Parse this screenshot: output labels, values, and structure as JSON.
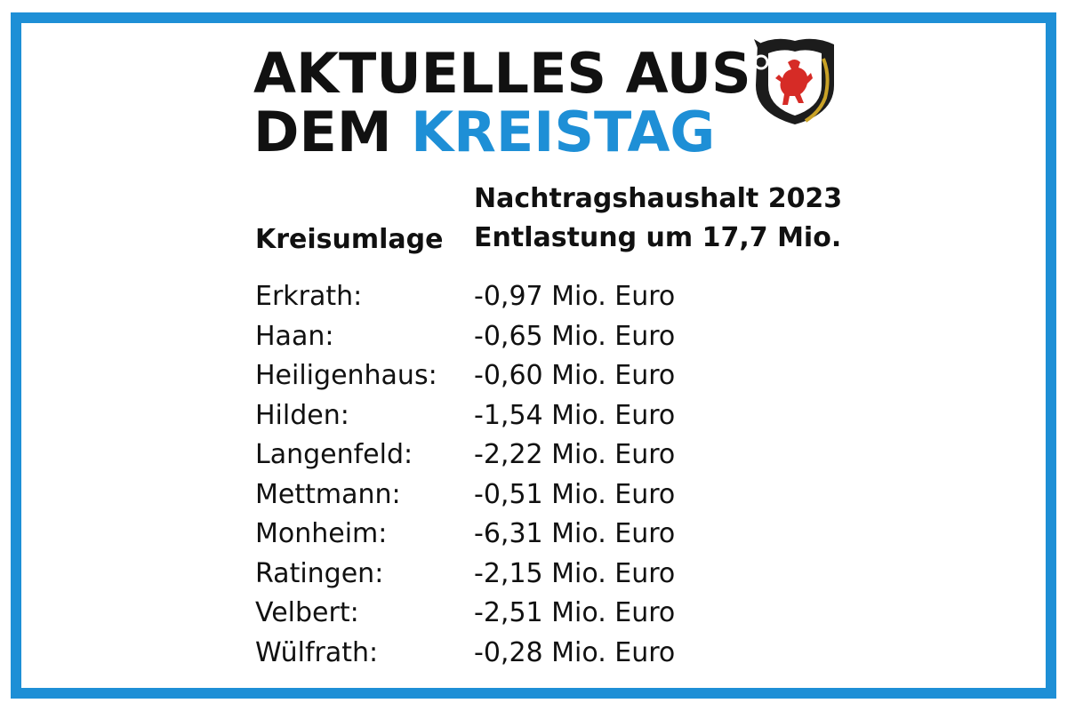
{
  "headline": {
    "line1": "AKTUELLES AUS",
    "line2_black": "DEM",
    "line2_blue": "KREISTAG"
  },
  "colors": {
    "accent_blue": "#1e8fd6",
    "text": "#111111"
  },
  "crest": {
    "icon": "coat-of-arms-red-lion-icon"
  },
  "table": {
    "left_header": "Kreisumlage",
    "right_header_line1": "Nachtragshaushalt 2023",
    "right_header_line2": "Entlastung um 17,7 Mio.",
    "rows": [
      {
        "city": "Erkrath:",
        "value": "-0,97 Mio. Euro"
      },
      {
        "city": "Haan:",
        "value": "-0,65 Mio. Euro"
      },
      {
        "city": "Heiligenhaus:",
        "value": "-0,60 Mio. Euro"
      },
      {
        "city": "Hilden:",
        "value": "-1,54 Mio. Euro"
      },
      {
        "city": "Langenfeld:",
        "value": "-2,22 Mio. Euro"
      },
      {
        "city": "Mettmann:",
        "value": "-0,51 Mio. Euro"
      },
      {
        "city": "Monheim:",
        "value": "-6,31 Mio. Euro"
      },
      {
        "city": "Ratingen:",
        "value": "-2,15 Mio. Euro"
      },
      {
        "city": "Velbert:",
        "value": "-2,51 Mio. Euro"
      },
      {
        "city": "Wülfrath:",
        "value": "-0,28 Mio. Euro"
      }
    ]
  }
}
